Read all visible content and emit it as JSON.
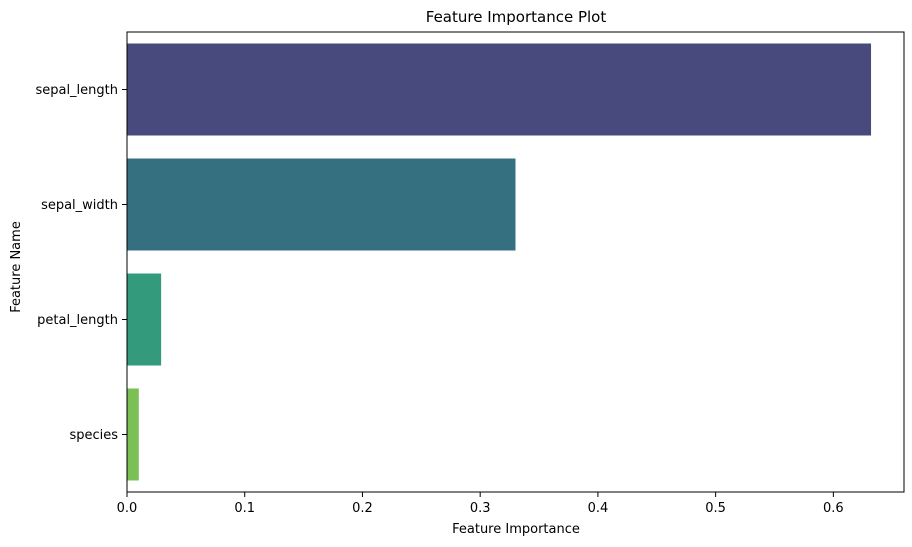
{
  "chart_data": {
    "type": "bar",
    "orientation": "horizontal",
    "title": "Feature Importance Plot",
    "xlabel": "Feature Importance",
    "ylabel": "Feature Name",
    "categories": [
      "sepal_length",
      "sepal_width",
      "petal_length",
      "species"
    ],
    "values": [
      0.632,
      0.33,
      0.029,
      0.01
    ],
    "colors": [
      "#48497c",
      "#357081",
      "#339a7b",
      "#7ac055"
    ],
    "xlim": [
      0,
      0.66
    ],
    "xticks": [
      0.0,
      0.1,
      0.2,
      0.3,
      0.4,
      0.5,
      0.6
    ],
    "xtick_labels": [
      "0.0",
      "0.1",
      "0.2",
      "0.3",
      "0.4",
      "0.5",
      "0.6"
    ],
    "grid": false,
    "legend": "none"
  }
}
